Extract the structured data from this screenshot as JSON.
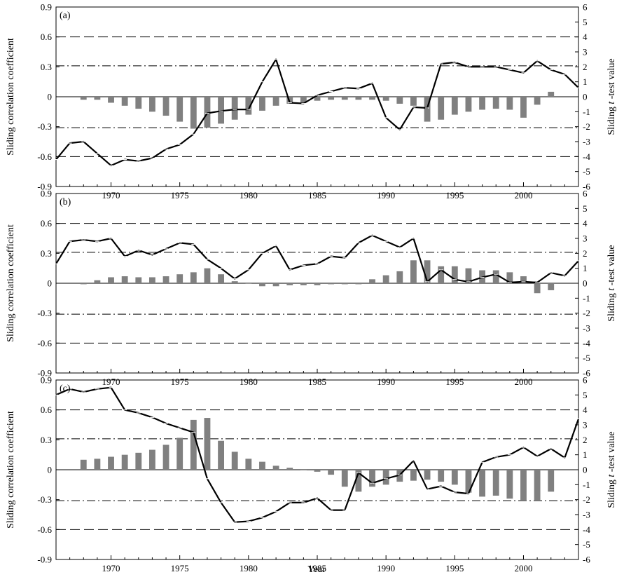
{
  "chart_data": {
    "type": "bar+line",
    "xlabel": "Year",
    "ylabel_left": "Sliding correlation coefficient",
    "ylabel_right_prefix": "Sliding ",
    "ylabel_right_t": "t",
    "ylabel_right_suffix": " -test value",
    "x_range": [
      1966,
      2004
    ],
    "x_ticks": [
      1970,
      1975,
      1980,
      1985,
      1990,
      1995,
      2000
    ],
    "ylim_left": [
      -0.9,
      0.9
    ],
    "yticks_left": [
      "0.9",
      "0.6",
      "0.3",
      "0",
      "-0.3",
      "-0.6",
      "-0.9"
    ],
    "ylim_right": [
      -6,
      6
    ],
    "yticks_right": [
      "6",
      "5",
      "4",
      "3",
      "2",
      "1",
      "0",
      "-1",
      "-2",
      "-3",
      "-4",
      "-5",
      "-6"
    ],
    "reference_lines": {
      "dashed": [
        0.6,
        -0.6
      ],
      "dash_dot": [
        0.31,
        -0.31
      ]
    },
    "grid": false,
    "panels": [
      {
        "label": "(a)",
        "bars": {
          "x": [
            1968,
            1969,
            1970,
            1971,
            1972,
            1973,
            1974,
            1975,
            1976,
            1977,
            1978,
            1979,
            1980,
            1981,
            1982,
            1983,
            1984,
            1985,
            1986,
            1987,
            1988,
            1989,
            1990,
            1991,
            1992,
            1993,
            1994,
            1995,
            1996,
            1997,
            1998,
            1999,
            2000,
            2001,
            2002
          ],
          "values": [
            -0.03,
            -0.03,
            -0.06,
            -0.09,
            -0.12,
            -0.15,
            -0.19,
            -0.25,
            -0.32,
            -0.31,
            -0.27,
            -0.23,
            -0.18,
            -0.14,
            -0.09,
            -0.07,
            -0.06,
            -0.04,
            -0.03,
            -0.03,
            -0.03,
            -0.03,
            -0.04,
            -0.07,
            -0.09,
            -0.25,
            -0.23,
            -0.18,
            -0.15,
            -0.13,
            -0.12,
            -0.13,
            -0.21,
            -0.08,
            0.05
          ]
        },
        "line": {
          "x": [
            1966,
            1967,
            1968,
            1969,
            1970,
            1971,
            1972,
            1973,
            1974,
            1975,
            1976,
            1977,
            1978,
            1979,
            1980,
            1981,
            1982,
            1983,
            1984,
            1985,
            1986,
            1987,
            1988,
            1989,
            1990,
            1991,
            1992,
            1993,
            1994,
            1995,
            1996,
            1997,
            1998,
            1999,
            2000,
            2001,
            2002,
            2003,
            2004
          ],
          "t_values": [
            -4.2,
            -3.1,
            -3.0,
            -3.8,
            -4.6,
            -4.2,
            -4.3,
            -4.1,
            -3.5,
            -3.2,
            -2.5,
            -1.1,
            -0.95,
            -0.85,
            -0.85,
            1.0,
            2.5,
            -0.4,
            -0.45,
            0.1,
            0.35,
            0.6,
            0.55,
            0.9,
            -1.4,
            -2.2,
            -0.7,
            -0.75,
            2.2,
            2.3,
            2.0,
            2.0,
            2.0,
            1.8,
            1.6,
            2.4,
            1.8,
            1.5,
            0.6
          ]
        }
      },
      {
        "label": "(b)",
        "bars": {
          "x": [
            1968,
            1969,
            1970,
            1971,
            1972,
            1973,
            1974,
            1975,
            1976,
            1977,
            1978,
            1979,
            1980,
            1981,
            1982,
            1983,
            1984,
            1985,
            1986,
            1987,
            1988,
            1989,
            1990,
            1991,
            1992,
            1993,
            1994,
            1995,
            1996,
            1997,
            1998,
            1999,
            2000,
            2001,
            2002
          ],
          "values": [
            -0.01,
            0.03,
            0.06,
            0.07,
            0.06,
            0.06,
            0.07,
            0.09,
            0.11,
            0.15,
            0.09,
            0.02,
            0.0,
            -0.03,
            -0.03,
            -0.02,
            -0.02,
            -0.02,
            -0.01,
            -0.01,
            -0.01,
            0.04,
            0.08,
            0.12,
            0.23,
            0.23,
            0.17,
            0.17,
            0.15,
            0.13,
            0.13,
            0.11,
            0.07,
            -0.1,
            -0.07
          ]
        },
        "line": {
          "x": [
            1966,
            1967,
            1968,
            1969,
            1970,
            1971,
            1972,
            1973,
            1974,
            1975,
            1976,
            1977,
            1978,
            1979,
            1980,
            1981,
            1982,
            1983,
            1984,
            1985,
            1986,
            1987,
            1988,
            1989,
            1990,
            1991,
            1992,
            1993,
            1994,
            1995,
            1996,
            1997,
            1998,
            1999,
            2000,
            2001,
            2002,
            2003,
            2004
          ],
          "t_values": [
            1.3,
            2.8,
            2.9,
            2.8,
            3.0,
            1.8,
            2.2,
            1.9,
            2.3,
            2.7,
            2.6,
            1.6,
            1.0,
            0.3,
            0.9,
            2.0,
            2.5,
            0.9,
            1.2,
            1.3,
            1.8,
            1.7,
            2.7,
            3.2,
            2.8,
            2.4,
            3.0,
            0.1,
            0.9,
            0.25,
            0.1,
            0.4,
            0.6,
            0.05,
            0.1,
            0.05,
            0.7,
            0.5,
            1.5
          ]
        }
      },
      {
        "label": "(c)",
        "bars": {
          "x": [
            1968,
            1969,
            1970,
            1971,
            1972,
            1973,
            1974,
            1975,
            1976,
            1977,
            1978,
            1979,
            1980,
            1981,
            1982,
            1983,
            1984,
            1985,
            1986,
            1987,
            1988,
            1989,
            1990,
            1991,
            1992,
            1993,
            1994,
            1995,
            1996,
            1997,
            1998,
            1999,
            2000,
            2001,
            2002
          ],
          "values": [
            0.1,
            0.11,
            0.13,
            0.15,
            0.17,
            0.2,
            0.25,
            0.32,
            0.5,
            0.52,
            0.29,
            0.18,
            0.11,
            0.08,
            0.04,
            0.02,
            0.0,
            -0.02,
            -0.05,
            -0.17,
            -0.22,
            -0.17,
            -0.15,
            -0.12,
            -0.11,
            -0.1,
            -0.12,
            -0.15,
            -0.23,
            -0.27,
            -0.26,
            -0.29,
            -0.31,
            -0.31,
            -0.22
          ]
        },
        "line": {
          "x": [
            1966,
            1967,
            1968,
            1969,
            1970,
            1971,
            1972,
            1973,
            1974,
            1975,
            1976,
            1977,
            1978,
            1979,
            1980,
            1981,
            1982,
            1983,
            1984,
            1985,
            1986,
            1987,
            1988,
            1989,
            1990,
            1991,
            1992,
            1993,
            1994,
            1995,
            1996,
            1997,
            1998,
            1999,
            2000,
            2001,
            2002,
            2003,
            2004
          ],
          "t_values": [
            5.0,
            5.4,
            5.2,
            5.4,
            5.5,
            4.0,
            3.8,
            3.5,
            3.1,
            2.8,
            2.5,
            -0.6,
            -2.2,
            -3.5,
            -3.45,
            -3.2,
            -2.8,
            -2.2,
            -2.2,
            -1.9,
            -2.7,
            -2.7,
            -0.2,
            -0.9,
            -0.6,
            -0.35,
            0.6,
            -1.3,
            -1.1,
            -1.5,
            -1.6,
            0.5,
            0.85,
            1.0,
            1.5,
            0.9,
            1.4,
            0.8,
            3.4
          ]
        }
      }
    ]
  }
}
